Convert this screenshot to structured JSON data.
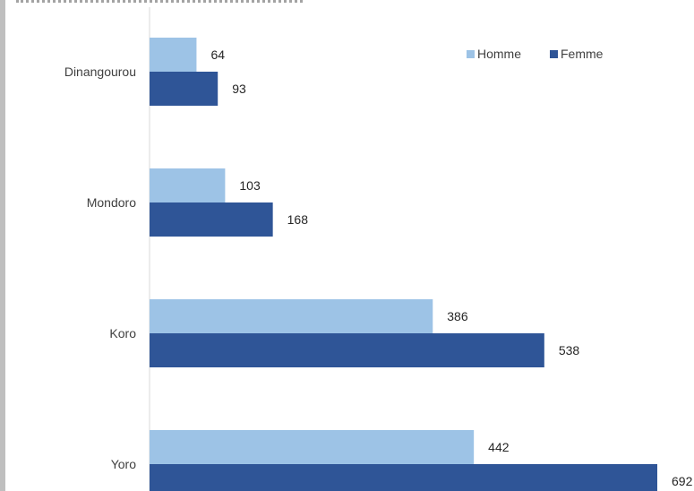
{
  "chart_data": {
    "type": "bar",
    "orientation": "horizontal",
    "title": "",
    "xlabel": "",
    "ylabel": "",
    "categories": [
      "Dinangourou",
      "Mondoro",
      "Koro",
      "Yoro"
    ],
    "series": [
      {
        "name": "Homme",
        "color": "#9dc3e6",
        "values": [
          64,
          103,
          386,
          442
        ]
      },
      {
        "name": "Femme",
        "color": "#2f5597",
        "values": [
          93,
          168,
          538,
          692
        ]
      }
    ],
    "xlim": [
      0,
      692
    ],
    "grid": false,
    "legend": "top-right",
    "data_labels": true
  }
}
